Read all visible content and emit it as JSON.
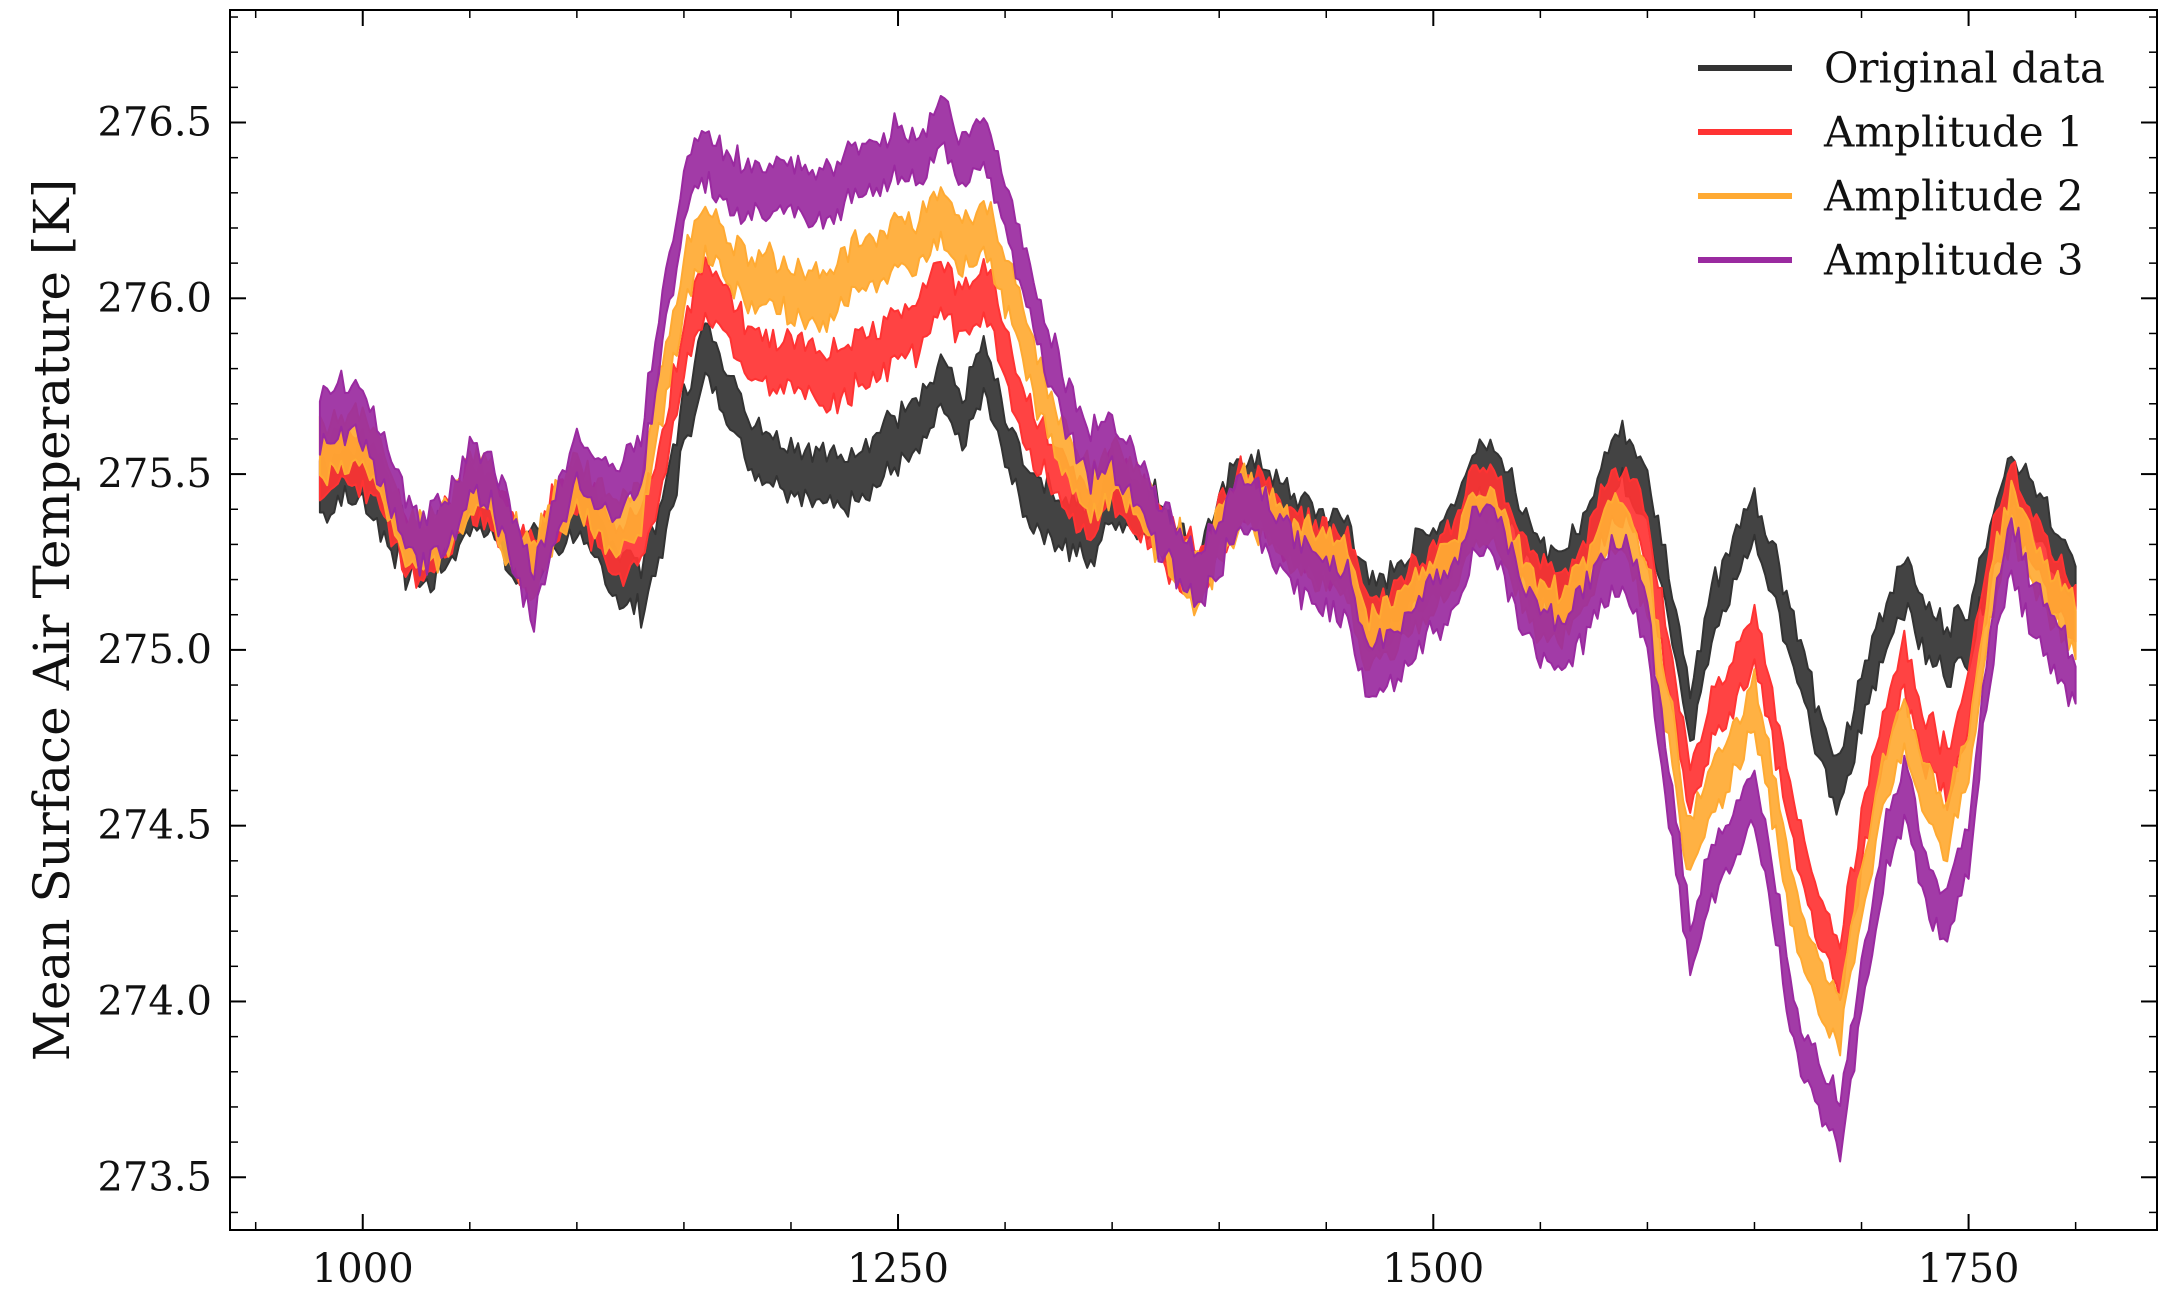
{
  "chart_data": {
    "type": "line",
    "title": "",
    "xlabel": "",
    "ylabel": "Mean Surface Air Temperature [K]",
    "xlim": [
      938,
      1838
    ],
    "ylim": [
      273.35,
      276.82
    ],
    "x_ticks": [
      1000,
      1250,
      1500,
      1750
    ],
    "x_tick_labels": [
      "1000",
      "1250",
      "1500",
      "1750"
    ],
    "y_ticks": [
      273.5,
      274.0,
      274.5,
      275.0,
      275.5,
      276.0,
      276.5
    ],
    "y_tick_labels": [
      "273.5",
      "274.0",
      "274.5",
      "275.0",
      "275.5",
      "276.0",
      "276.5"
    ],
    "grid": false,
    "legend_position": "top-right",
    "x": [
      980,
      990,
      1000,
      1010,
      1020,
      1030,
      1040,
      1050,
      1060,
      1070,
      1080,
      1090,
      1100,
      1110,
      1120,
      1130,
      1140,
      1150,
      1160,
      1170,
      1180,
      1190,
      1200,
      1210,
      1220,
      1230,
      1240,
      1250,
      1260,
      1270,
      1280,
      1290,
      1300,
      1310,
      1320,
      1330,
      1340,
      1350,
      1360,
      1370,
      1380,
      1390,
      1400,
      1410,
      1420,
      1430,
      1440,
      1450,
      1460,
      1470,
      1480,
      1490,
      1500,
      1510,
      1520,
      1530,
      1540,
      1550,
      1560,
      1570,
      1580,
      1590,
      1600,
      1610,
      1620,
      1630,
      1640,
      1650,
      1660,
      1670,
      1680,
      1690,
      1700,
      1710,
      1720,
      1730,
      1740,
      1750,
      1760,
      1770,
      1780,
      1790,
      1800
    ],
    "series": [
      {
        "name": "Original data",
        "color": "#333333",
        "band": 0.14,
        "values": [
          275.45,
          275.5,
          275.5,
          275.4,
          275.28,
          275.25,
          275.32,
          275.42,
          275.4,
          275.3,
          275.25,
          275.35,
          275.4,
          275.3,
          275.2,
          275.18,
          275.35,
          275.65,
          275.85,
          275.75,
          275.6,
          275.55,
          275.53,
          275.5,
          275.48,
          275.5,
          275.55,
          275.6,
          275.62,
          275.75,
          275.65,
          275.8,
          275.6,
          275.45,
          275.4,
          275.35,
          275.32,
          275.45,
          275.42,
          275.38,
          275.3,
          275.22,
          275.35,
          275.48,
          275.45,
          275.4,
          275.35,
          275.32,
          275.3,
          275.12,
          275.15,
          275.22,
          275.28,
          275.35,
          275.52,
          275.5,
          275.35,
          275.22,
          275.22,
          275.3,
          275.5,
          275.55,
          275.45,
          275.15,
          274.8,
          275.1,
          275.25,
          275.38,
          275.2,
          275.0,
          274.75,
          274.6,
          274.85,
          275.05,
          275.2,
          275.05,
          275.0,
          275.05,
          275.3,
          275.5,
          275.4,
          275.3,
          275.18
        ]
      },
      {
        "name": "Amplitude 1",
        "color": "#ff3333",
        "band": 0.14,
        "values": [
          275.5,
          275.55,
          275.55,
          275.45,
          275.3,
          275.27,
          275.34,
          275.45,
          275.42,
          275.3,
          275.25,
          275.38,
          275.45,
          275.35,
          275.28,
          275.32,
          275.55,
          275.85,
          276.05,
          275.95,
          275.85,
          275.82,
          275.8,
          275.78,
          275.78,
          275.82,
          275.85,
          275.9,
          275.92,
          276.05,
          275.95,
          276.05,
          275.85,
          275.65,
          275.55,
          275.45,
          275.38,
          275.48,
          275.42,
          275.35,
          275.28,
          275.22,
          275.35,
          275.45,
          275.42,
          275.35,
          275.3,
          275.28,
          275.25,
          275.08,
          275.1,
          275.18,
          275.22,
          275.3,
          275.45,
          275.42,
          275.28,
          275.18,
          275.15,
          275.22,
          275.4,
          275.45,
          275.3,
          274.95,
          274.6,
          274.8,
          274.9,
          275.05,
          274.75,
          274.45,
          274.25,
          274.1,
          274.45,
          274.75,
          274.95,
          274.75,
          274.65,
          274.85,
          275.25,
          275.45,
          275.3,
          275.2,
          275.1
        ]
      },
      {
        "name": "Amplitude 2",
        "color": "#ffaa33",
        "band": 0.14,
        "values": [
          275.55,
          275.6,
          275.6,
          275.48,
          275.32,
          275.28,
          275.35,
          275.48,
          275.45,
          275.3,
          275.22,
          275.38,
          275.48,
          275.4,
          275.35,
          275.42,
          275.75,
          276.05,
          276.2,
          276.12,
          276.05,
          276.05,
          276.02,
          276.0,
          276.02,
          276.08,
          276.1,
          276.15,
          276.15,
          276.25,
          276.15,
          276.22,
          276.05,
          275.85,
          275.68,
          275.55,
          275.45,
          275.52,
          275.45,
          275.35,
          275.28,
          275.2,
          275.32,
          275.42,
          275.4,
          275.32,
          275.28,
          275.25,
          275.22,
          275.03,
          275.05,
          275.12,
          275.18,
          275.25,
          275.4,
          275.37,
          275.22,
          275.12,
          275.1,
          275.18,
          275.32,
          275.35,
          275.18,
          274.8,
          274.42,
          274.6,
          274.7,
          274.85,
          274.55,
          274.2,
          274.05,
          273.95,
          274.3,
          274.6,
          274.8,
          274.6,
          274.5,
          274.7,
          275.15,
          275.4,
          275.25,
          275.15,
          275.05
        ]
      },
      {
        "name": "Amplitude 3",
        "color": "#9a2aa0",
        "band": 0.14,
        "values": [
          275.65,
          275.68,
          275.68,
          275.52,
          275.35,
          275.3,
          275.38,
          275.52,
          275.48,
          275.3,
          275.15,
          275.38,
          275.55,
          275.48,
          275.45,
          275.55,
          275.95,
          276.3,
          276.4,
          276.35,
          276.3,
          276.32,
          276.3,
          276.28,
          276.3,
          276.36,
          276.38,
          276.42,
          276.4,
          276.5,
          276.38,
          276.45,
          276.28,
          276.05,
          275.85,
          275.68,
          275.55,
          275.6,
          275.5,
          275.38,
          275.28,
          275.2,
          275.3,
          275.42,
          275.38,
          275.28,
          275.22,
          275.2,
          275.15,
          274.95,
          274.98,
          275.05,
          275.12,
          275.18,
          275.35,
          275.3,
          275.15,
          275.05,
          275.02,
          275.1,
          275.22,
          275.25,
          275.05,
          274.6,
          274.15,
          274.35,
          274.45,
          274.6,
          274.25,
          273.9,
          273.75,
          273.65,
          274.05,
          274.4,
          274.6,
          274.35,
          274.22,
          274.45,
          275.0,
          275.3,
          275.12,
          275.02,
          274.9
        ]
      }
    ]
  }
}
